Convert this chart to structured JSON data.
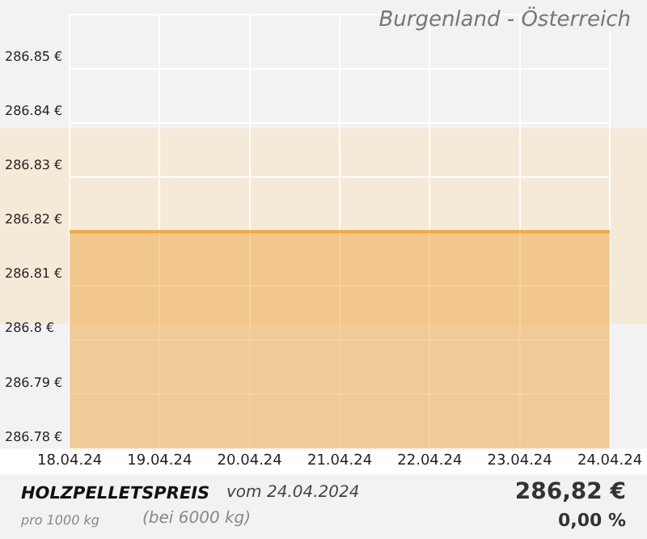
{
  "chart_data": {
    "type": "area",
    "title": "Burgenland - Österreich",
    "categories": [
      "18.04.24",
      "19.04.24",
      "20.04.24",
      "21.04.24",
      "22.04.24",
      "23.04.24",
      "24.04.24"
    ],
    "series": [
      {
        "color": "#f0a848",
        "values": [
          286.82,
          286.82,
          286.82,
          286.82,
          286.82,
          286.82,
          286.82
        ]
      }
    ],
    "ylim": [
      286.78,
      286.86
    ],
    "yticks": [
      {
        "value": 286.78,
        "label": "286.78 €"
      },
      {
        "value": 286.79,
        "label": "286.79 €"
      },
      {
        "value": 286.8,
        "label": "286.8 €"
      },
      {
        "value": 286.81,
        "label": "286.81 €"
      },
      {
        "value": 286.82,
        "label": "286.82 €"
      },
      {
        "value": 286.83,
        "label": "286.83 €"
      },
      {
        "value": 286.84,
        "label": "286.84 €"
      },
      {
        "value": 286.85,
        "label": "286.85 €"
      },
      {
        "value": 286.86,
        "label": null
      }
    ],
    "bands": [
      {
        "axis": "y",
        "from": 286.803,
        "to": 286.839,
        "color": "#f5ead8"
      }
    ],
    "grid": true,
    "legend": false,
    "annotations": [
      "HOLZPELLETSPREIS",
      "vom 24.04.2024",
      "pro 1000 kg",
      "(bei 6000 kg)",
      "286,82 €",
      "0,00 %"
    ]
  }
}
